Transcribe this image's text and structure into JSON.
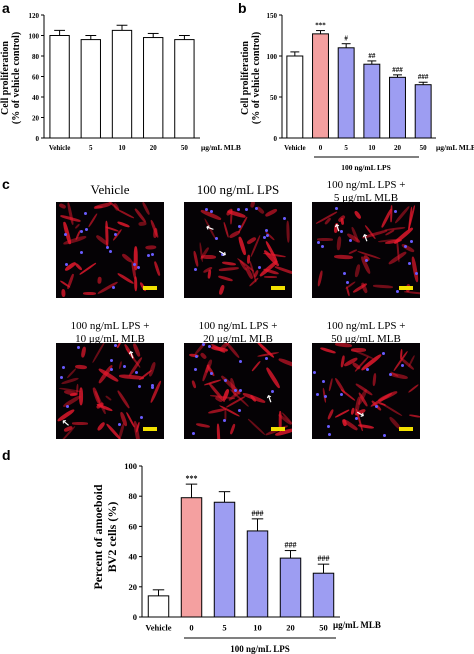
{
  "panel_a": {
    "letter": "a",
    "ylabel_line1": "Cell proliferation",
    "ylabel_line2": "(% of vehicle control)",
    "unit_label": "μg/mL MLB"
  },
  "panel_b": {
    "letter": "b",
    "ylabel_line1": "Cell proliferation",
    "ylabel_line2": "(% of vehicle control)",
    "unit_label": "μg/mL MLB",
    "group_label": "100 ng/mL LPS"
  },
  "panel_c": {
    "letter": "c",
    "images": [
      {
        "label1": "Vehicle",
        "label2": ""
      },
      {
        "label1": "100 ng/mL LPS",
        "label2": ""
      },
      {
        "label1": "100 ng/mL LPS +",
        "label2": "5 μg/mL MLB"
      },
      {
        "label1": "100 ng/mL LPS +",
        "label2": "10 μg/mL MLB"
      },
      {
        "label1": "100 ng/mL LPS +",
        "label2": "20 μg/mL MLB"
      },
      {
        "label1": "100 ng/mL LPS +",
        "label2": "50 μg/mL MLB"
      }
    ],
    "colors": {
      "cytoskeleton": "#e6192d",
      "nucleus": "#6a5cff",
      "scale_bar": "#f2e100",
      "background": "#050205"
    }
  },
  "panel_d": {
    "letter": "d",
    "ylabel_line1": "Percent of amoeboid",
    "ylabel_line2": "BV2 cells (%)",
    "unit_label": "μg/mL MLB",
    "group_label": "100 ng/mL LPS"
  },
  "colors": {
    "vehicle": "#ffffff",
    "lps": "#f4a0a0",
    "mlb": "#9d9df2"
  },
  "chart_data": [
    {
      "type": "bar",
      "categories": [
        "Vehicle",
        "5",
        "10",
        "20",
        "50"
      ],
      "values": [
        100,
        96,
        105,
        98,
        96
      ],
      "errors": [
        5,
        4,
        5,
        4,
        4
      ],
      "ylim": [
        0,
        120
      ],
      "yticks": [
        0,
        20,
        40,
        60,
        80,
        100,
        120
      ],
      "annotations": [
        "",
        "",
        "",
        "",
        ""
      ],
      "colors": [
        "#ffffff",
        "#ffffff",
        "#ffffff",
        "#ffffff",
        "#ffffff"
      ]
    },
    {
      "type": "bar",
      "categories": [
        "Vehicle",
        "0",
        "5",
        "10",
        "20",
        "50"
      ],
      "values": [
        100,
        127,
        110,
        90,
        74,
        65
      ],
      "errors": [
        5,
        4,
        5,
        4,
        3,
        3
      ],
      "ylim": [
        0,
        150
      ],
      "yticks": [
        0,
        50,
        100,
        150
      ],
      "annotations": [
        "",
        "***",
        "#",
        "##",
        "###",
        "###"
      ],
      "colors": [
        "#ffffff",
        "#f4a0a0",
        "#9d9df2",
        "#9d9df2",
        "#9d9df2",
        "#9d9df2"
      ]
    },
    {
      "type": "bar",
      "categories": [
        "Vehicle",
        "0",
        "5",
        "10",
        "20",
        "50"
      ],
      "values": [
        14,
        79,
        76,
        57,
        39,
        29
      ],
      "errors": [
        4,
        9,
        7,
        8,
        5,
        6
      ],
      "ylim": [
        0,
        100
      ],
      "yticks": [
        0,
        20,
        40,
        60,
        80,
        100
      ],
      "annotations": [
        "",
        "***",
        "",
        "###",
        "###",
        "###"
      ],
      "colors": [
        "#ffffff",
        "#f4a0a0",
        "#9d9df2",
        "#9d9df2",
        "#9d9df2",
        "#9d9df2"
      ]
    }
  ]
}
